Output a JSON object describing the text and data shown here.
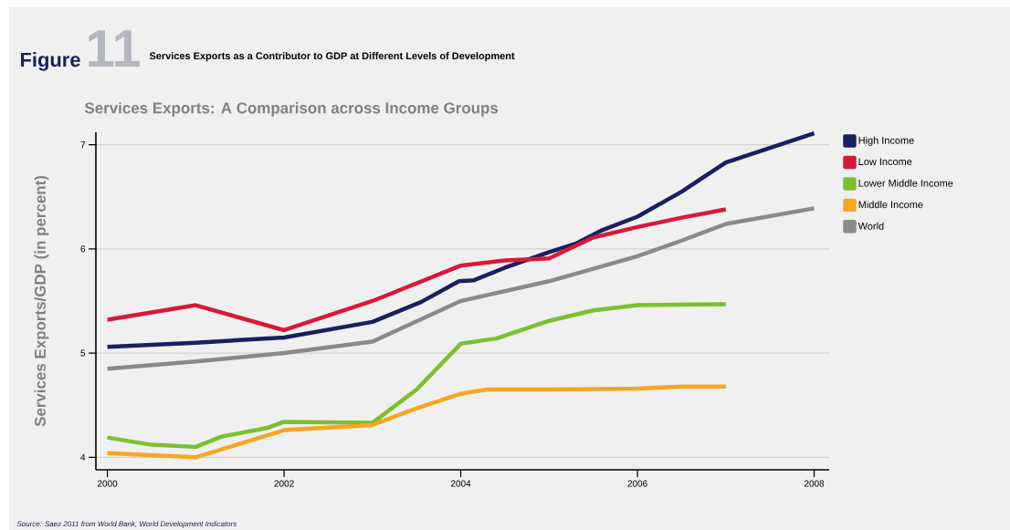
{
  "chart_data": {
    "type": "line",
    "title": "Services Exports as a Contributor to GDP at Different Levels of Development",
    "subtitle": "Services Exports: A Comparison across Income Groups",
    "ylabel": "Services Exports/GDP (in percent)",
    "annotations": [
      "Figure",
      "11",
      "Source: Saez 2011 from World Bank, World Development Indicators"
    ],
    "xlim": [
      1999.87,
      2008.17
    ],
    "ylim": [
      3.88,
      7.12
    ],
    "xticks": [
      2000,
      2002,
      2004,
      2006,
      2008
    ],
    "yticks": [
      4,
      5,
      6,
      7
    ],
    "grid": "y",
    "legend": "right",
    "series": [
      {
        "name": "High Income",
        "color": "#1b1f5e",
        "x": [
          2000,
          2001,
          2002,
          2003,
          2003.55,
          2003.98,
          2004.15,
          2004.5,
          2005,
          2005.3,
          2005.6,
          2006,
          2006.5,
          2007,
          2008
        ],
        "values": [
          5.06,
          5.1,
          5.15,
          5.3,
          5.49,
          5.69,
          5.7,
          5.82,
          5.97,
          6.05,
          6.18,
          6.31,
          6.55,
          6.83,
          7.11
        ]
      },
      {
        "name": "Low Income",
        "color": "#d6193a",
        "x": [
          2000,
          2001,
          2002,
          2003,
          2004,
          2004.5,
          2005,
          2005.5,
          2006,
          2006.5,
          2007
        ],
        "values": [
          5.32,
          5.46,
          5.22,
          5.5,
          5.84,
          5.89,
          5.91,
          6.11,
          6.21,
          6.3,
          6.38
        ]
      },
      {
        "name": "Lower Middle Income",
        "color": "#7dbf2e",
        "x": [
          2000,
          2000.5,
          2001,
          2001.3,
          2001.8,
          2002,
          2003,
          2003.5,
          2004,
          2004.4,
          2005,
          2005.5,
          2006,
          2007
        ],
        "values": [
          4.19,
          4.12,
          4.1,
          4.2,
          4.28,
          4.34,
          4.33,
          4.65,
          5.09,
          5.14,
          5.31,
          5.41,
          5.46,
          5.47
        ]
      },
      {
        "name": "Middle Income",
        "color": "#f5a623",
        "x": [
          2000,
          2001,
          2002,
          2003,
          2003.5,
          2004,
          2004.3,
          2005,
          2006,
          2006.5,
          2007
        ],
        "values": [
          4.04,
          4.0,
          4.26,
          4.31,
          4.47,
          4.61,
          4.65,
          4.65,
          4.66,
          4.68,
          4.68
        ]
      },
      {
        "name": "World",
        "color": "#8a8a8a",
        "x": [
          2000,
          2001,
          2002,
          2003,
          2004,
          2005,
          2006,
          2006.5,
          2007,
          2008
        ],
        "values": [
          4.85,
          4.92,
          5.0,
          5.11,
          5.5,
          5.69,
          5.93,
          6.08,
          6.24,
          6.39
        ]
      }
    ]
  }
}
